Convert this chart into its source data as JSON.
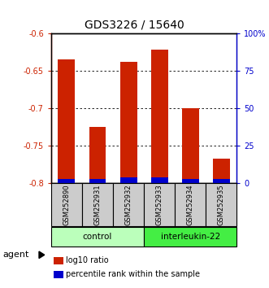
{
  "title": "GDS3226 / 15640",
  "samples": [
    "GSM252890",
    "GSM252931",
    "GSM252932",
    "GSM252933",
    "GSM252934",
    "GSM252935"
  ],
  "log10_ratio": [
    -0.635,
    -0.725,
    -0.638,
    -0.622,
    -0.7,
    -0.768
  ],
  "percentile_rank": [
    2.5,
    2.5,
    3.5,
    3.5,
    2.5,
    2.5
  ],
  "groups": [
    {
      "label": "control",
      "indices": [
        0,
        1,
        2
      ],
      "color": "#bbffbb"
    },
    {
      "label": "interleukin-22",
      "indices": [
        3,
        4,
        5
      ],
      "color": "#44ee44"
    }
  ],
  "ylim_left": [
    -0.8,
    -0.6
  ],
  "ylim_right": [
    0,
    100
  ],
  "yticks_left": [
    -0.8,
    -0.75,
    -0.7,
    -0.65,
    -0.6
  ],
  "yticks_right": [
    0,
    25,
    50,
    75,
    100
  ],
  "ytick_labels_left": [
    "-0.8",
    "-0.75",
    "-0.7",
    "-0.65",
    "-0.6"
  ],
  "ytick_labels_right": [
    "0",
    "25",
    "50",
    "75",
    "100%"
  ],
  "bar_color_red": "#cc2200",
  "bar_color_blue": "#0000cc",
  "left_axis_color": "#cc2200",
  "right_axis_color": "#0000cc",
  "sample_box_color": "#cccccc",
  "agent_label": "agent",
  "legend_items": [
    {
      "color": "#cc2200",
      "label": "log10 ratio"
    },
    {
      "color": "#0000cc",
      "label": "percentile rank within the sample"
    }
  ]
}
